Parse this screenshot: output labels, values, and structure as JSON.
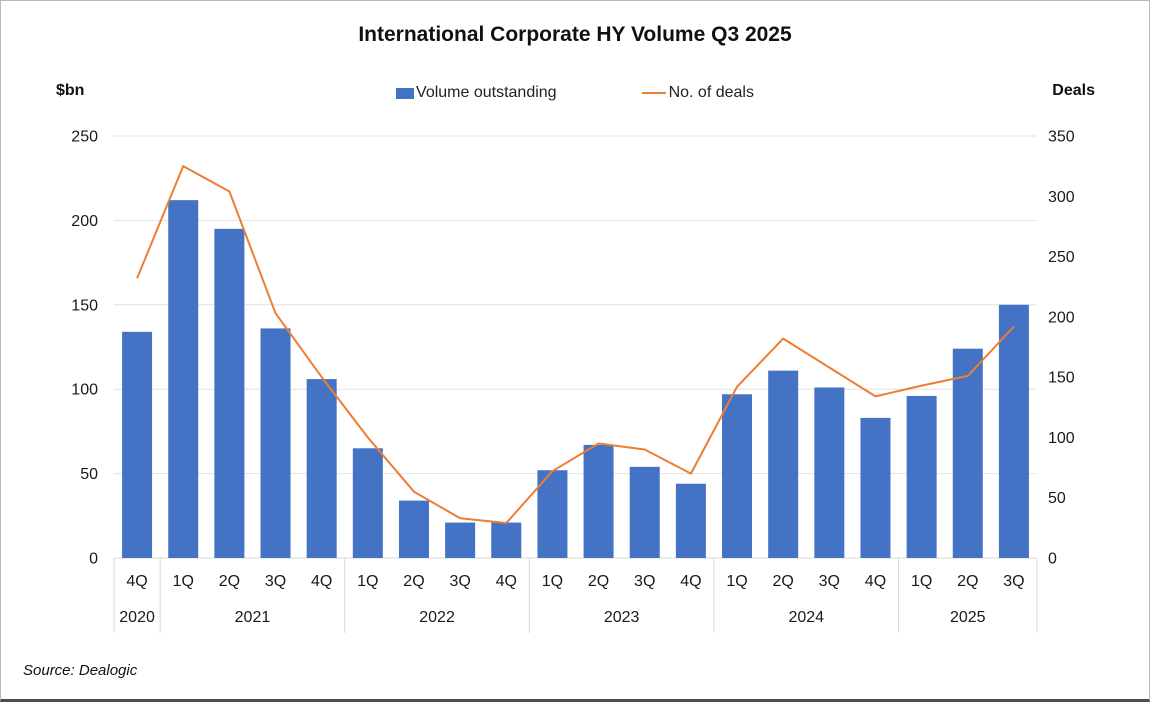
{
  "chart_data": {
    "type": "bar",
    "combo": "bar+line",
    "title": "International Corporate HY Volume Q3 2025",
    "left_axis": {
      "title": "$bn",
      "min": 0,
      "max": 250,
      "step": 50,
      "ticks": [
        0,
        50,
        100,
        150,
        200,
        250
      ]
    },
    "right_axis": {
      "title": "Deals",
      "min": 0,
      "max": 350,
      "step": 50,
      "ticks": [
        0,
        50,
        100,
        150,
        200,
        250,
        300,
        350
      ]
    },
    "categories": [
      "4Q",
      "1Q",
      "2Q",
      "3Q",
      "4Q",
      "1Q",
      "2Q",
      "3Q",
      "4Q",
      "1Q",
      "2Q",
      "3Q",
      "4Q",
      "1Q",
      "2Q",
      "3Q",
      "4Q",
      "1Q",
      "2Q",
      "3Q"
    ],
    "year_groups": [
      {
        "label": "2020",
        "span": 1
      },
      {
        "label": "2021",
        "span": 4
      },
      {
        "label": "2022",
        "span": 4
      },
      {
        "label": "2023",
        "span": 4
      },
      {
        "label": "2024",
        "span": 4
      },
      {
        "label": "2025",
        "span": 3
      }
    ],
    "series": [
      {
        "name": "Volume outstanding",
        "type": "bar",
        "axis": "left",
        "color": "#4472C4",
        "values": [
          134,
          212,
          195,
          136,
          106,
          65,
          34,
          21,
          21,
          52,
          67,
          54,
          44,
          97,
          111,
          101,
          83,
          96,
          124,
          150
        ]
      },
      {
        "name": "No. of deals",
        "type": "line",
        "axis": "right",
        "color": "#ED7D31",
        "values": [
          232,
          325,
          304,
          203,
          150,
          100,
          55,
          33,
          29,
          72,
          95,
          90,
          70,
          142,
          182,
          158,
          134,
          143,
          151,
          192
        ]
      }
    ],
    "gridlines": true,
    "legend_position": "top"
  },
  "source": "Source: Dealogic",
  "colors": {
    "bar": "#4472C4",
    "line": "#ED7D31",
    "grid": "#e2e2e2",
    "axis_line": "#d9d9d9",
    "text": "#1a1a1a"
  }
}
